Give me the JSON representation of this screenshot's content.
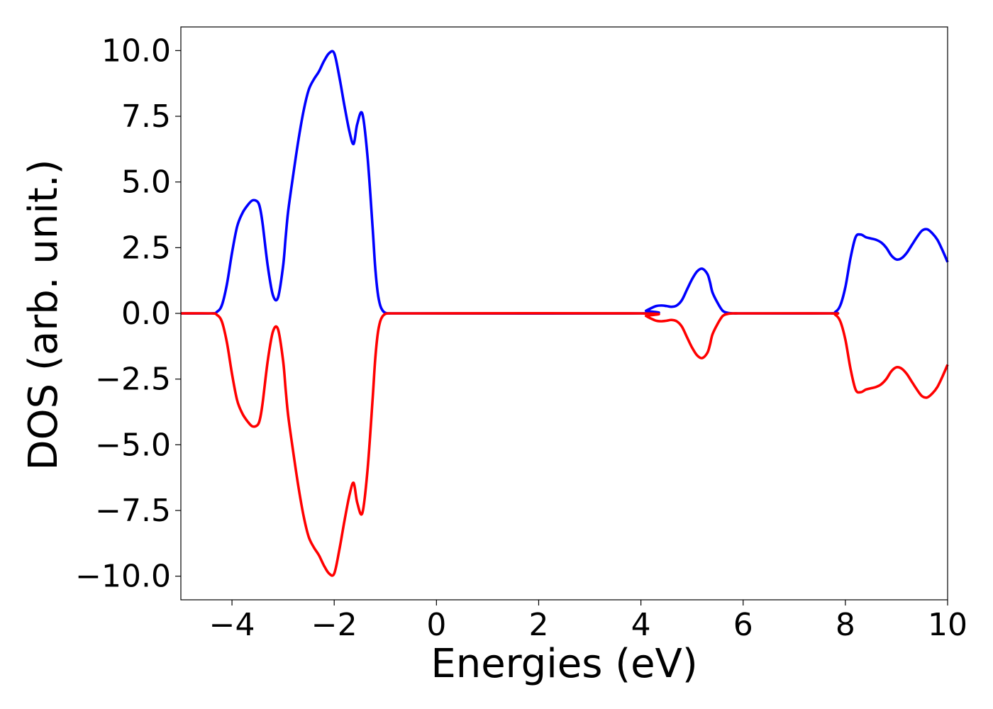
{
  "chart_data": {
    "type": "line",
    "title": "",
    "xlabel": "Energies (eV)",
    "ylabel": "DOS (arb. unit.)",
    "xlim": [
      -5,
      10
    ],
    "ylim": [
      -10.9,
      10.9
    ],
    "grid": false,
    "legend": "none",
    "x_ticks": [
      {
        "value": -4,
        "label": "−4"
      },
      {
        "value": -2,
        "label": "−2"
      },
      {
        "value": 0,
        "label": "0"
      },
      {
        "value": 2,
        "label": "2"
      },
      {
        "value": 4,
        "label": "4"
      },
      {
        "value": 6,
        "label": "6"
      },
      {
        "value": 8,
        "label": "8"
      },
      {
        "value": 10,
        "label": "10"
      }
    ],
    "y_ticks": [
      {
        "value": 10,
        "label": "10.0"
      },
      {
        "value": 7.5,
        "label": "7.5"
      },
      {
        "value": 5,
        "label": "5.0"
      },
      {
        "value": 2.5,
        "label": "2.5"
      },
      {
        "value": 0,
        "label": "0.0"
      },
      {
        "value": -2.5,
        "label": "−2.5"
      },
      {
        "value": -5,
        "label": "−5.0"
      },
      {
        "value": -7.5,
        "label": "−7.5"
      },
      {
        "value": -10,
        "label": "−10.0"
      }
    ],
    "series": [
      {
        "color": "#0000ff",
        "x": [
          -5.0,
          -4.4,
          -4.3,
          -4.2,
          -4.1,
          -4.0,
          -3.9,
          -3.8,
          -3.7,
          -3.6,
          -3.5,
          -3.45,
          -3.4,
          -3.3,
          -3.2,
          -3.1,
          -3.0,
          -2.95,
          -2.9,
          -2.8,
          -2.7,
          -2.6,
          -2.5,
          -2.4,
          -2.3,
          -2.2,
          -2.1,
          -2.0,
          -1.9,
          -1.8,
          -1.7,
          -1.62,
          -1.55,
          -1.45,
          -1.35,
          -1.25,
          -1.2,
          -1.15,
          -1.1,
          -1.05,
          -1.0,
          -0.95,
          -0.9,
          -0.85,
          -0.8,
          -0.75,
          -0.7,
          -0.65,
          -0.6,
          -0.55,
          -0.5,
          -0.4,
          4.0,
          4.1,
          4.2,
          4.3,
          4.4,
          4.5,
          4.6,
          4.7,
          4.8,
          4.9,
          5.0,
          5.1,
          5.2,
          5.3,
          5.35,
          5.4,
          5.5,
          5.6,
          5.7,
          5.8,
          5.9,
          6.0,
          7.7,
          7.8,
          7.9,
          8.0,
          8.1,
          8.2,
          8.3,
          8.4,
          8.5,
          8.6,
          8.7,
          8.8,
          8.9,
          9.0,
          9.1,
          9.2,
          9.3,
          9.4,
          9.5,
          9.6,
          9.7,
          9.8,
          9.9,
          10.0
        ],
        "y": [
          0.0,
          0.0,
          0.05,
          0.3,
          1.1,
          2.3,
          3.3,
          3.8,
          4.1,
          4.3,
          4.25,
          4.0,
          3.4,
          1.8,
          0.7,
          0.6,
          1.8,
          2.9,
          3.9,
          5.3,
          6.6,
          7.7,
          8.5,
          8.9,
          9.2,
          9.6,
          9.9,
          9.9,
          9.0,
          7.9,
          6.9,
          6.45,
          7.2,
          7.6,
          6.0,
          3.3,
          1.8,
          0.8,
          0.3,
          0.1,
          0.02,
          0.0,
          0.0,
          0.0,
          0.0,
          0.0,
          0.0,
          0.0,
          0.0,
          0.0,
          0.0,
          0.0,
          0.0,
          0.1,
          0.2,
          0.28,
          0.3,
          0.28,
          0.25,
          0.3,
          0.5,
          0.9,
          1.3,
          1.6,
          1.7,
          1.5,
          1.2,
          0.8,
          0.4,
          0.1,
          0.02,
          0.0,
          0.0,
          0.0,
          0.0,
          0.05,
          0.3,
          1.0,
          2.1,
          2.9,
          3.0,
          2.9,
          2.85,
          2.8,
          2.7,
          2.5,
          2.2,
          2.05,
          2.1,
          2.3,
          2.6,
          2.9,
          3.15,
          3.2,
          3.05,
          2.8,
          2.4,
          1.95
        ]
      },
      {
        "color": "#ff0000",
        "x": [
          -5.0,
          -4.4,
          -4.3,
          -4.2,
          -4.1,
          -4.0,
          -3.9,
          -3.8,
          -3.7,
          -3.6,
          -3.5,
          -3.45,
          -3.4,
          -3.3,
          -3.2,
          -3.1,
          -3.0,
          -2.95,
          -2.9,
          -2.8,
          -2.7,
          -2.6,
          -2.5,
          -2.4,
          -2.3,
          -2.2,
          -2.1,
          -2.0,
          -1.9,
          -1.8,
          -1.7,
          -1.62,
          -1.55,
          -1.45,
          -1.35,
          -1.25,
          -1.2,
          -1.15,
          -1.1,
          -1.05,
          -1.0,
          -0.95,
          -0.9,
          -0.85,
          -0.8,
          -0.75,
          -0.7,
          -0.65,
          -0.6,
          -0.55,
          -0.5,
          -0.4,
          4.0,
          4.1,
          4.2,
          4.3,
          4.4,
          4.5,
          4.6,
          4.7,
          4.8,
          4.9,
          5.0,
          5.1,
          5.2,
          5.3,
          5.35,
          5.4,
          5.5,
          5.6,
          5.7,
          5.8,
          5.9,
          6.0,
          7.7,
          7.8,
          7.9,
          8.0,
          8.1,
          8.2,
          8.3,
          8.4,
          8.5,
          8.6,
          8.7,
          8.8,
          8.9,
          9.0,
          9.1,
          9.2,
          9.3,
          9.4,
          9.5,
          9.6,
          9.7,
          9.8,
          9.9,
          10.0
        ],
        "y": [
          0.0,
          0.0,
          -0.05,
          -0.3,
          -1.1,
          -2.3,
          -3.3,
          -3.8,
          -4.1,
          -4.3,
          -4.25,
          -4.0,
          -3.4,
          -1.8,
          -0.7,
          -0.6,
          -1.8,
          -2.9,
          -3.9,
          -5.3,
          -6.6,
          -7.7,
          -8.5,
          -8.9,
          -9.2,
          -9.6,
          -9.9,
          -9.9,
          -9.0,
          -7.9,
          -6.9,
          -6.45,
          -7.2,
          -7.6,
          -6.0,
          -3.3,
          -1.8,
          -0.8,
          -0.3,
          -0.1,
          -0.02,
          0.0,
          0.0,
          0.0,
          0.0,
          0.0,
          0.0,
          0.0,
          0.0,
          0.0,
          0.0,
          0.0,
          0.0,
          -0.1,
          -0.2,
          -0.28,
          -0.3,
          -0.28,
          -0.25,
          -0.3,
          -0.5,
          -0.9,
          -1.3,
          -1.6,
          -1.7,
          -1.5,
          -1.2,
          -0.8,
          -0.4,
          -0.1,
          -0.02,
          0.0,
          0.0,
          0.0,
          0.0,
          -0.05,
          -0.3,
          -1.0,
          -2.1,
          -2.9,
          -3.0,
          -2.9,
          -2.85,
          -2.8,
          -2.7,
          -2.5,
          -2.2,
          -2.05,
          -2.1,
          -2.3,
          -2.6,
          -2.9,
          -3.15,
          -3.2,
          -3.05,
          -2.8,
          -2.4,
          -1.95
        ]
      }
    ]
  }
}
